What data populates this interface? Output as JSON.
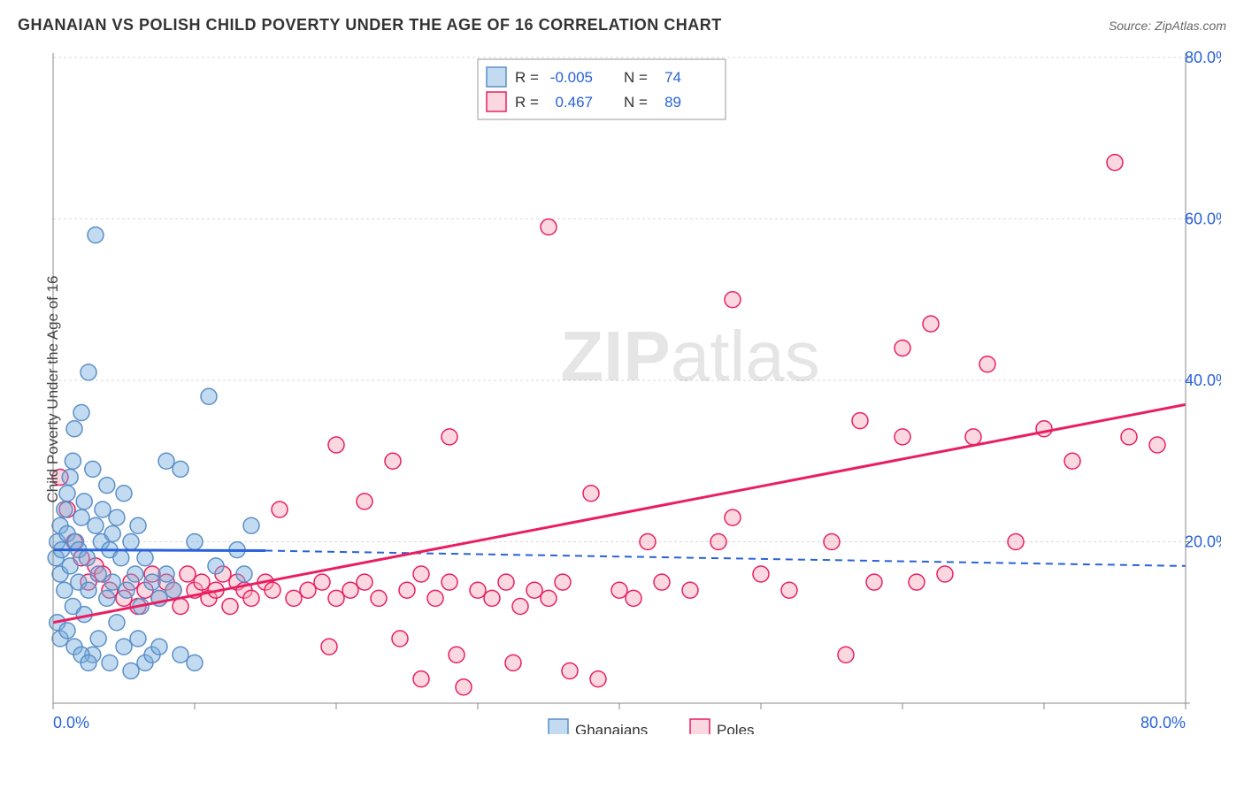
{
  "title": "GHANAIAN VS POLISH CHILD POVERTY UNDER THE AGE OF 16 CORRELATION CHART",
  "source": "Source: ZipAtlas.com",
  "watermark": {
    "zip": "ZIP",
    "rest": "atlas"
  },
  "y_axis_label": "Child Poverty Under the Age of 16",
  "stats": {
    "series1": {
      "R_label": "R =",
      "R": "-0.005",
      "N_label": "N =",
      "N": "74"
    },
    "series2": {
      "R_label": "R =",
      "R": "0.467",
      "N_label": "N =",
      "N": "89"
    }
  },
  "legend": {
    "s1": "Ghanaians",
    "s2": "Poles"
  },
  "chart": {
    "type": "scatter",
    "xlim": [
      0,
      80
    ],
    "ylim": [
      0,
      80
    ],
    "x_ticks": [
      0,
      10,
      20,
      30,
      40,
      50,
      60,
      70,
      80
    ],
    "y_ticks": [
      20,
      40,
      60,
      80
    ],
    "x_tick_labels": {
      "0": "0.0%",
      "80": "80.0%"
    },
    "y_tick_labels": {
      "20": "20.0%",
      "40": "40.0%",
      "60": "60.0%",
      "80": "80.0%"
    },
    "grid_color": "#d8d8d8",
    "grid_dash": "3,3",
    "axis_color": "#888",
    "tick_label_color": "#2962d9",
    "marker_r": 9,
    "marker_stroke_width": 1.5,
    "series": {
      "ghanaians": {
        "fill": "rgba(123,175,222,0.45)",
        "stroke": "#5b8fc7",
        "trend_solid": {
          "x1": 0,
          "y1": 19,
          "x2": 15,
          "y2": 18.9,
          "color": "#2962d9",
          "width": 3
        },
        "trend_dash": {
          "x1": 15,
          "y1": 18.9,
          "x2": 80,
          "y2": 17.0,
          "color": "#2962d9",
          "width": 2,
          "dash": "8,6"
        },
        "points": [
          [
            0.2,
            18
          ],
          [
            0.3,
            20
          ],
          [
            0.5,
            22
          ],
          [
            0.5,
            16
          ],
          [
            0.6,
            19
          ],
          [
            0.8,
            24
          ],
          [
            0.8,
            14
          ],
          [
            1.0,
            21
          ],
          [
            1.0,
            26
          ],
          [
            1.2,
            28
          ],
          [
            1.2,
            17
          ],
          [
            1.4,
            12
          ],
          [
            1.4,
            30
          ],
          [
            1.5,
            34
          ],
          [
            1.6,
            20
          ],
          [
            1.8,
            19
          ],
          [
            1.8,
            15
          ],
          [
            2.0,
            23
          ],
          [
            2.0,
            36
          ],
          [
            2.2,
            11
          ],
          [
            2.2,
            25
          ],
          [
            2.4,
            18
          ],
          [
            2.5,
            41
          ],
          [
            2.5,
            14
          ],
          [
            2.8,
            29
          ],
          [
            2.8,
            6
          ],
          [
            3.0,
            22
          ],
          [
            3.0,
            58
          ],
          [
            3.2,
            16
          ],
          [
            3.2,
            8
          ],
          [
            3.4,
            20
          ],
          [
            3.5,
            24
          ],
          [
            3.8,
            13
          ],
          [
            3.8,
            27
          ],
          [
            4.0,
            19
          ],
          [
            4.0,
            5
          ],
          [
            4.2,
            21
          ],
          [
            4.2,
            15
          ],
          [
            4.5,
            10
          ],
          [
            4.5,
            23
          ],
          [
            4.8,
            18
          ],
          [
            5.0,
            7
          ],
          [
            5.0,
            26
          ],
          [
            5.2,
            14
          ],
          [
            5.5,
            20
          ],
          [
            5.5,
            4
          ],
          [
            5.8,
            16
          ],
          [
            6.0,
            22
          ],
          [
            6.0,
            8
          ],
          [
            6.2,
            12
          ],
          [
            6.5,
            18
          ],
          [
            6.5,
            5
          ],
          [
            7.0,
            15
          ],
          [
            7.0,
            6
          ],
          [
            7.5,
            13
          ],
          [
            7.5,
            7
          ],
          [
            8.0,
            30
          ],
          [
            8.0,
            16
          ],
          [
            8.5,
            14
          ],
          [
            9.0,
            29
          ],
          [
            9.0,
            6
          ],
          [
            10.0,
            20
          ],
          [
            10.0,
            5
          ],
          [
            11.0,
            38
          ],
          [
            11.5,
            17
          ],
          [
            13.0,
            19
          ],
          [
            13.5,
            16
          ],
          [
            14.0,
            22
          ],
          [
            0.3,
            10
          ],
          [
            0.5,
            8
          ],
          [
            1.0,
            9
          ],
          [
            1.5,
            7
          ],
          [
            2.0,
            6
          ],
          [
            2.5,
            5
          ]
        ]
      },
      "poles": {
        "fill": "rgba(247,168,184,0.45)",
        "stroke": "#e91e63",
        "trend_solid": {
          "x1": 0,
          "y1": 10,
          "x2": 80,
          "y2": 37,
          "color": "#e91e63",
          "width": 3
        },
        "points": [
          [
            0.5,
            28
          ],
          [
            1.0,
            24
          ],
          [
            1.5,
            20
          ],
          [
            2.0,
            18
          ],
          [
            2.5,
            15
          ],
          [
            3.0,
            17
          ],
          [
            3.5,
            16
          ],
          [
            4.0,
            14
          ],
          [
            5.0,
            13
          ],
          [
            5.5,
            15
          ],
          [
            6.0,
            12
          ],
          [
            6.5,
            14
          ],
          [
            7.0,
            16
          ],
          [
            7.5,
            13
          ],
          [
            8.0,
            15
          ],
          [
            8.5,
            14
          ],
          [
            9.0,
            12
          ],
          [
            9.5,
            16
          ],
          [
            10.0,
            14
          ],
          [
            10.5,
            15
          ],
          [
            11.0,
            13
          ],
          [
            11.5,
            14
          ],
          [
            12.0,
            16
          ],
          [
            12.5,
            12
          ],
          [
            13.0,
            15
          ],
          [
            13.5,
            14
          ],
          [
            14.0,
            13
          ],
          [
            15.0,
            15
          ],
          [
            15.5,
            14
          ],
          [
            16.0,
            24
          ],
          [
            17.0,
            13
          ],
          [
            18.0,
            14
          ],
          [
            19.0,
            15
          ],
          [
            19.5,
            7
          ],
          [
            20.0,
            13
          ],
          [
            20.0,
            32
          ],
          [
            21.0,
            14
          ],
          [
            22.0,
            15
          ],
          [
            22.0,
            25
          ],
          [
            23.0,
            13
          ],
          [
            24.0,
            30
          ],
          [
            24.5,
            8
          ],
          [
            25.0,
            14
          ],
          [
            26.0,
            16
          ],
          [
            26.0,
            3
          ],
          [
            27.0,
            13
          ],
          [
            28.0,
            15
          ],
          [
            28.0,
            33
          ],
          [
            28.5,
            6
          ],
          [
            29.0,
            2
          ],
          [
            30.0,
            14
          ],
          [
            31.0,
            13
          ],
          [
            32.0,
            15
          ],
          [
            32.5,
            5
          ],
          [
            33.0,
            12
          ],
          [
            34.0,
            14
          ],
          [
            35.0,
            59
          ],
          [
            35.0,
            13
          ],
          [
            36.0,
            15
          ],
          [
            36.5,
            4
          ],
          [
            38.0,
            26
          ],
          [
            38.5,
            3
          ],
          [
            40.0,
            14
          ],
          [
            41.0,
            13
          ],
          [
            42.0,
            20
          ],
          [
            43.0,
            15
          ],
          [
            45.0,
            14
          ],
          [
            47.0,
            20
          ],
          [
            48.0,
            23
          ],
          [
            48.0,
            50
          ],
          [
            50.0,
            16
          ],
          [
            52.0,
            14
          ],
          [
            55.0,
            20
          ],
          [
            56.0,
            6
          ],
          [
            57.0,
            35
          ],
          [
            58.0,
            15
          ],
          [
            60.0,
            44
          ],
          [
            60.0,
            33
          ],
          [
            61.0,
            15
          ],
          [
            62.0,
            47
          ],
          [
            63.0,
            16
          ],
          [
            65.0,
            33
          ],
          [
            66.0,
            42
          ],
          [
            68.0,
            20
          ],
          [
            70.0,
            34
          ],
          [
            72.0,
            30
          ],
          [
            75.0,
            67
          ],
          [
            76.0,
            33
          ],
          [
            78.0,
            32
          ]
        ]
      }
    }
  }
}
